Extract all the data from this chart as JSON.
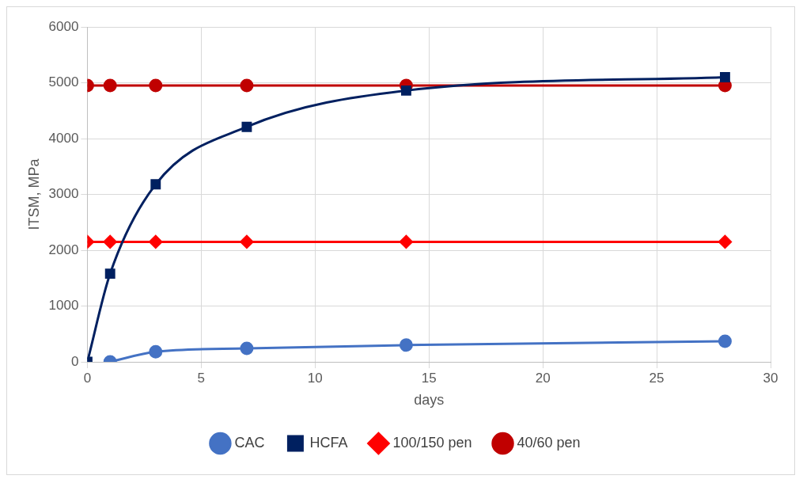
{
  "chart_data": {
    "type": "line",
    "xlabel": "days",
    "ylabel": "ITSM, MPa",
    "xlim": [
      0,
      30
    ],
    "xticks": [
      0,
      5,
      10,
      15,
      20,
      25,
      30
    ],
    "ylim": [
      0,
      6000
    ],
    "yticks": [
      0,
      1000,
      2000,
      3000,
      4000,
      5000,
      6000
    ],
    "grid": true,
    "legend": "bottom",
    "series": [
      {
        "name": "CAC",
        "color": "#4472c4",
        "marker": "circle",
        "x": [
          1,
          3,
          7,
          14,
          28
        ],
        "values": [
          0,
          180,
          240,
          300,
          370
        ]
      },
      {
        "name": "HCFA",
        "color": "#002060",
        "marker": "square",
        "x": [
          0,
          1,
          3,
          7,
          14,
          28
        ],
        "values": [
          0,
          1580,
          3180,
          4210,
          4860,
          5100
        ]
      },
      {
        "name": "100/150 pen",
        "color": "#ff0000",
        "marker": "diamond",
        "x": [
          0,
          1,
          3,
          7,
          14,
          28
        ],
        "values": [
          2150,
          2150,
          2150,
          2150,
          2150,
          2150
        ]
      },
      {
        "name": "40/60 pen",
        "color": "#c00000",
        "marker": "circle",
        "x": [
          0,
          1,
          3,
          7,
          14,
          28
        ],
        "values": [
          4950,
          4950,
          4950,
          4950,
          4950,
          4950
        ]
      }
    ]
  }
}
